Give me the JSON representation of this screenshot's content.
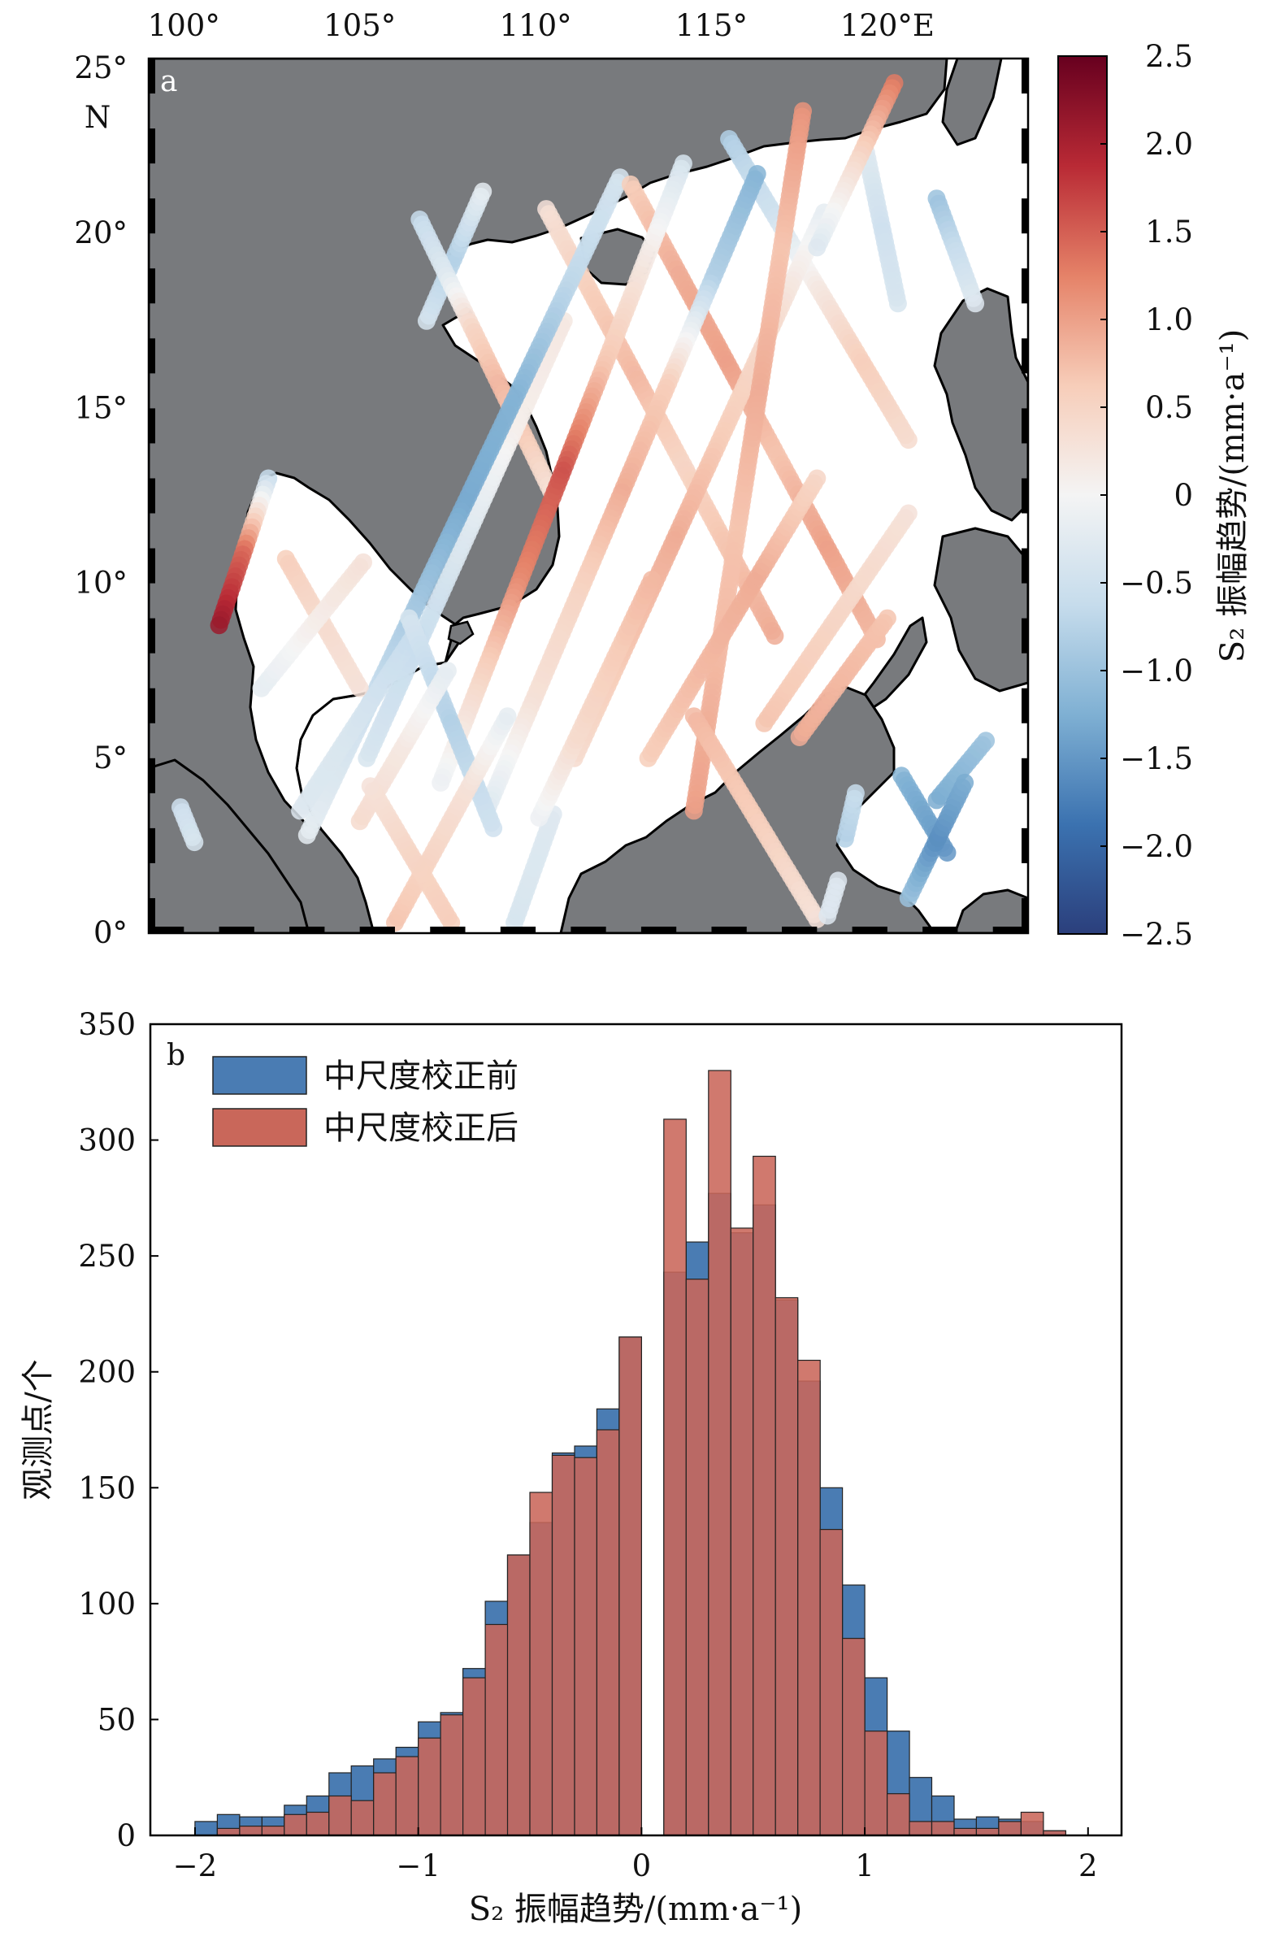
{
  "chart_data": [
    {
      "type": "map",
      "panel_label": "a",
      "x_ticks": [
        "100°",
        "105°",
        "110°",
        "115°",
        "120°E"
      ],
      "x_tick_values": [
        100,
        105,
        110,
        115,
        120
      ],
      "y_ticks": [
        "25°",
        "20°",
        "15°",
        "10°",
        "5°",
        "0°"
      ],
      "y_tick_values": [
        25,
        20,
        15,
        10,
        5,
        0
      ],
      "y_top_suffix": "N",
      "xlim": [
        99,
        124
      ],
      "ylim": [
        0,
        25
      ],
      "colorbar": {
        "label": "S₂ 振幅趋势/(mm·a⁻¹)",
        "ticks": [
          "2.5",
          "2.0",
          "1.5",
          "1.0",
          "0.5",
          "0",
          "−0.5",
          "−1.0",
          "−1.5",
          "−2.0",
          "−2.5"
        ],
        "tick_values": [
          2.5,
          2.0,
          1.5,
          1.0,
          0.5,
          0,
          -0.5,
          -1.0,
          -1.5,
          -2.0,
          -2.5
        ],
        "range": [
          -2.5,
          2.5
        ],
        "colormap": "RdBu_r",
        "colors": [
          "#2b3f7c",
          "#3b72b0",
          "#7fb0d3",
          "#c6dcec",
          "#f4f4f4",
          "#f7cdb9",
          "#e58268",
          "#b92a35",
          "#67001f"
        ]
      },
      "land_color": "#787a7d",
      "tracks": [
        {
          "from": [
            106.9,
            17.5
          ],
          "to": [
            108.5,
            21.2
          ],
          "values": [
            -0.4,
            -0.6,
            -0.8,
            -0.5,
            -0.2
          ]
        },
        {
          "from": [
            106.7,
            20.4
          ],
          "to": [
            110.5,
            12.5
          ],
          "values": [
            -0.6,
            -0.3,
            0.5,
            0.8,
            0.6,
            0.3
          ]
        },
        {
          "from": [
            110.3,
            20.7
          ],
          "to": [
            116.8,
            8.5
          ],
          "values": [
            0.3,
            0.6,
            0.8,
            0.5,
            0.7,
            0.9
          ]
        },
        {
          "from": [
            110.8,
            17.5
          ],
          "to": [
            105.2,
            5.0
          ],
          "values": [
            0.2,
            0.1,
            -0.3,
            -0.6,
            -0.4
          ]
        },
        {
          "from": [
            112.4,
            21.6
          ],
          "to": [
            103.5,
            2.8
          ],
          "values": [
            -0.4,
            -0.7,
            -1.2,
            -1.3,
            -0.9,
            -0.5,
            -0.2
          ]
        },
        {
          "from": [
            112.7,
            21.4
          ],
          "to": [
            119.7,
            8.4
          ],
          "values": [
            0.6,
            0.9,
            1.0,
            0.7,
            1.0,
            0.8
          ]
        },
        {
          "from": [
            114.2,
            22.0
          ],
          "to": [
            107.3,
            4.3
          ],
          "values": [
            -0.4,
            0.2,
            0.7,
            1.6,
            1.2,
            0.5,
            -0.1
          ]
        },
        {
          "from": [
            115.5,
            22.7
          ],
          "to": [
            120.6,
            14.1
          ],
          "values": [
            -0.8,
            -0.5,
            0.2,
            0.6,
            0.4
          ]
        },
        {
          "from": [
            116.3,
            21.7
          ],
          "to": [
            108.6,
            3.5
          ],
          "values": [
            -1.2,
            -0.8,
            0.6,
            0.9,
            0.5,
            0.3,
            -0.3
          ]
        },
        {
          "from": [
            118.2,
            20.6
          ],
          "to": [
            111.1,
            5.0
          ],
          "values": [
            -0.2,
            0.4,
            0.6,
            0.9,
            0.7,
            0.4
          ]
        },
        {
          "from": [
            119.4,
            22.3
          ],
          "to": [
            120.3,
            18.0
          ],
          "values": [
            -0.3,
            -0.5,
            -0.4
          ]
        },
        {
          "from": [
            120.2,
            24.3
          ],
          "to": [
            118.0,
            19.6
          ],
          "values": [
            1.3,
            0.4,
            -0.3
          ]
        },
        {
          "from": [
            121.4,
            21.0
          ],
          "to": [
            122.5,
            18.0
          ],
          "values": [
            -1.0,
            -0.6,
            -0.3
          ]
        },
        {
          "from": [
            117.6,
            23.5
          ],
          "to": [
            114.5,
            3.5
          ],
          "values": [
            1.1,
            0.7,
            0.9,
            0.7,
            0.8,
            1.0
          ]
        },
        {
          "from": [
            114.5,
            6.2
          ],
          "to": [
            118.0,
            0.4
          ],
          "values": [
            0.8,
            0.6,
            0.3
          ]
        },
        {
          "from": [
            102.4,
            13.0
          ],
          "to": [
            101.0,
            8.8
          ],
          "values": [
            -0.6,
            1.4,
            2.1
          ]
        },
        {
          "from": [
            102.9,
            10.7
          ],
          "to": [
            105.0,
            7.0
          ],
          "values": [
            0.6,
            0.4,
            0.3
          ]
        },
        {
          "from": [
            102.2,
            7.0
          ],
          "to": [
            105.1,
            10.6
          ],
          "values": [
            -0.2,
            0.1,
            0.3
          ]
        },
        {
          "from": [
            103.3,
            3.5
          ],
          "to": [
            106.6,
            8.6
          ],
          "values": [
            -0.3,
            -0.4,
            -0.6
          ]
        },
        {
          "from": [
            106.4,
            9.0
          ],
          "to": [
            108.8,
            3.0
          ],
          "values": [
            -0.4,
            -0.8,
            -0.5
          ]
        },
        {
          "from": [
            105.0,
            3.2
          ],
          "to": [
            107.5,
            7.5
          ],
          "values": [
            0.4,
            0.2,
            -0.2
          ]
        },
        {
          "from": [
            106.0,
            0.3
          ],
          "to": [
            109.2,
            6.2
          ],
          "values": [
            0.7,
            0.5,
            0.3,
            -0.2
          ]
        },
        {
          "from": [
            107.6,
            0.3
          ],
          "to": [
            105.3,
            4.2
          ],
          "values": [
            0.6,
            0.5,
            0.3
          ]
        },
        {
          "from": [
            109.4,
            0.3
          ],
          "to": [
            110.5,
            3.4
          ],
          "values": [
            -0.4,
            -0.3
          ]
        },
        {
          "from": [
            110.1,
            3.3
          ],
          "to": [
            113.3,
            10.1
          ],
          "values": [
            -0.1,
            0.4,
            0.6,
            0.8
          ]
        },
        {
          "from": [
            113.2,
            5.0
          ],
          "to": [
            118.0,
            13.0
          ],
          "values": [
            0.6,
            0.8,
            0.9,
            0.5
          ]
        },
        {
          "from": [
            116.5,
            6.0
          ],
          "to": [
            120.6,
            12.0
          ],
          "values": [
            0.7,
            0.5,
            0.3
          ]
        },
        {
          "from": [
            117.5,
            5.6
          ],
          "to": [
            120.0,
            9.0
          ],
          "values": [
            0.9,
            0.7
          ]
        },
        {
          "from": [
            120.4,
            4.5
          ],
          "to": [
            121.7,
            2.3
          ],
          "values": [
            -1.2,
            -1.5
          ]
        },
        {
          "from": [
            121.4,
            3.8
          ],
          "to": [
            122.8,
            5.5
          ],
          "values": [
            -1.3,
            -1.0
          ]
        },
        {
          "from": [
            120.6,
            1.0
          ],
          "to": [
            122.2,
            4.3
          ],
          "values": [
            -1.0,
            -1.6,
            -1.3
          ]
        },
        {
          "from": [
            99.9,
            3.6
          ],
          "to": [
            100.3,
            2.6
          ],
          "values": [
            -0.5,
            -0.4
          ]
        },
        {
          "from": [
            118.8,
            2.7
          ],
          "to": [
            119.1,
            4.0
          ],
          "values": [
            -0.8,
            -0.6
          ]
        },
        {
          "from": [
            118.3,
            0.5
          ],
          "to": [
            118.6,
            1.5
          ],
          "values": [
            -0.3
          ]
        }
      ]
    },
    {
      "type": "bar",
      "panel_label": "b",
      "bin_width": 0.1,
      "x_ticks": [
        "−2",
        "−1",
        "0",
        "1",
        "2"
      ],
      "x_tick_values": [
        -2,
        -1,
        0,
        1,
        2
      ],
      "y_ticks": [
        "0",
        "50",
        "100",
        "150",
        "200",
        "250",
        "300",
        "350"
      ],
      "y_tick_values": [
        0,
        50,
        100,
        150,
        200,
        250,
        300,
        350
      ],
      "xlim": [
        -2.2,
        2.15
      ],
      "ylim": [
        0,
        350
      ],
      "xlabel": "S₂ 振幅趋势/(mm·a⁻¹)",
      "ylabel": "观测点/个",
      "series": [
        {
          "name": "中尺度校正前",
          "color": "#4a7cb3",
          "bins": [
            {
              "x": -1.9,
              "value": 6
            },
            {
              "x": -1.8,
              "value": 9
            },
            {
              "x": -1.7,
              "value": 8
            },
            {
              "x": -1.6,
              "value": 8
            },
            {
              "x": -1.5,
              "value": 13
            },
            {
              "x": -1.4,
              "value": 17
            },
            {
              "x": -1.3,
              "value": 27
            },
            {
              "x": -1.2,
              "value": 30
            },
            {
              "x": -1.1,
              "value": 33
            },
            {
              "x": -1.0,
              "value": 38
            },
            {
              "x": -0.9,
              "value": 49
            },
            {
              "x": -0.8,
              "value": 53
            },
            {
              "x": -0.7,
              "value": 72
            },
            {
              "x": -0.6,
              "value": 101
            },
            {
              "x": -0.5,
              "value": 121
            },
            {
              "x": -0.4,
              "value": 135
            },
            {
              "x": -0.3,
              "value": 165
            },
            {
              "x": -0.2,
              "value": 168
            },
            {
              "x": -0.1,
              "value": 184
            },
            {
              "x": 0.0,
              "value": 215
            },
            {
              "x": 0.2,
              "value": 243
            },
            {
              "x": 0.3,
              "value": 256
            },
            {
              "x": 0.4,
              "value": 277
            },
            {
              "x": 0.5,
              "value": 260
            },
            {
              "x": 0.6,
              "value": 272
            },
            {
              "x": 0.7,
              "value": 231
            },
            {
              "x": 0.8,
              "value": 196
            },
            {
              "x": 0.9,
              "value": 150
            },
            {
              "x": 1.0,
              "value": 108
            },
            {
              "x": 1.1,
              "value": 68
            },
            {
              "x": 1.2,
              "value": 45
            },
            {
              "x": 1.3,
              "value": 25
            },
            {
              "x": 1.4,
              "value": 17
            },
            {
              "x": 1.5,
              "value": 7
            },
            {
              "x": 1.6,
              "value": 8
            },
            {
              "x": 1.7,
              "value": 7
            },
            {
              "x": 1.8,
              "value": 6
            },
            {
              "x": 1.9,
              "value": 2
            }
          ]
        },
        {
          "name": "中尺度校正后",
          "color": "#c9675a",
          "bins": [
            {
              "x": -1.9,
              "value": 0
            },
            {
              "x": -1.8,
              "value": 3
            },
            {
              "x": -1.7,
              "value": 4
            },
            {
              "x": -1.6,
              "value": 4
            },
            {
              "x": -1.5,
              "value": 9
            },
            {
              "x": -1.4,
              "value": 10
            },
            {
              "x": -1.3,
              "value": 17
            },
            {
              "x": -1.2,
              "value": 15
            },
            {
              "x": -1.1,
              "value": 27
            },
            {
              "x": -1.0,
              "value": 34
            },
            {
              "x": -0.9,
              "value": 42
            },
            {
              "x": -0.8,
              "value": 52
            },
            {
              "x": -0.7,
              "value": 68
            },
            {
              "x": -0.6,
              "value": 91
            },
            {
              "x": -0.5,
              "value": 121
            },
            {
              "x": -0.4,
              "value": 148
            },
            {
              "x": -0.3,
              "value": 164
            },
            {
              "x": -0.2,
              "value": 163
            },
            {
              "x": -0.1,
              "value": 175
            },
            {
              "x": 0.0,
              "value": 215
            },
            {
              "x": 0.2,
              "value": 309
            },
            {
              "x": 0.3,
              "value": 240
            },
            {
              "x": 0.4,
              "value": 330
            },
            {
              "x": 0.5,
              "value": 262
            },
            {
              "x": 0.6,
              "value": 293
            },
            {
              "x": 0.7,
              "value": 232
            },
            {
              "x": 0.8,
              "value": 205
            },
            {
              "x": 0.9,
              "value": 132
            },
            {
              "x": 1.0,
              "value": 85
            },
            {
              "x": 1.1,
              "value": 45
            },
            {
              "x": 1.2,
              "value": 18
            },
            {
              "x": 1.3,
              "value": 6
            },
            {
              "x": 1.4,
              "value": 6
            },
            {
              "x": 1.5,
              "value": 3
            },
            {
              "x": 1.6,
              "value": 3
            },
            {
              "x": 1.7,
              "value": 6
            },
            {
              "x": 1.8,
              "value": 10
            },
            {
              "x": 1.9,
              "value": 2
            }
          ]
        }
      ]
    }
  ]
}
